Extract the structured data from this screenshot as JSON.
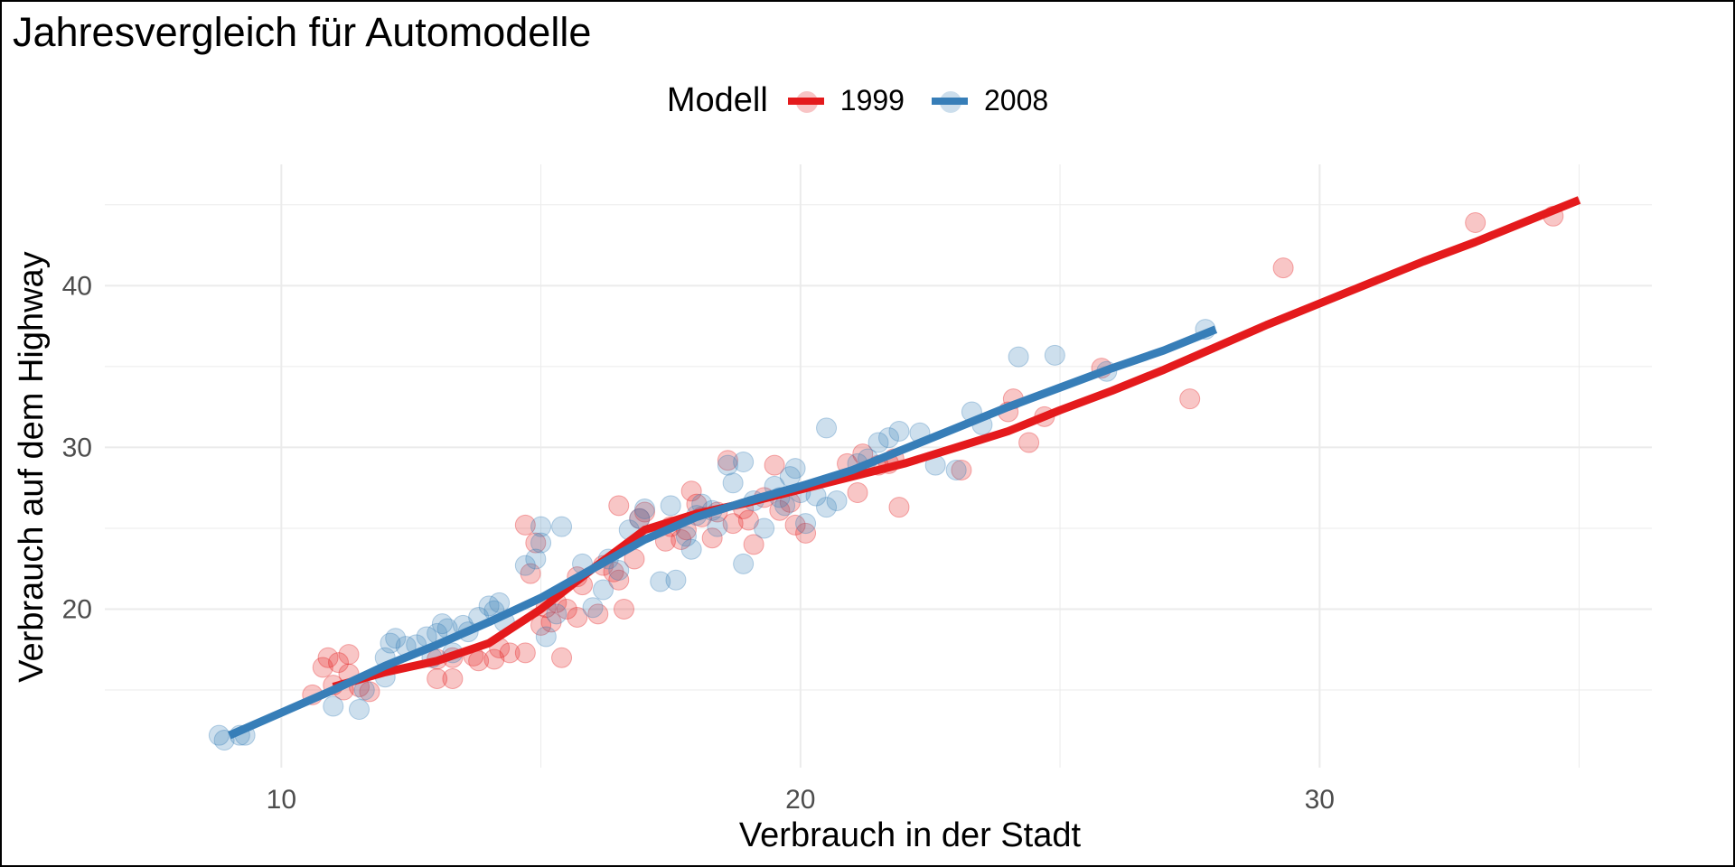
{
  "chart_data": {
    "type": "scatter",
    "title": "Jahresvergleich für Automodelle",
    "xlabel": "Verbrauch in der Stadt",
    "ylabel": "Verbrauch auf dem Highway",
    "xlim": [
      6.6,
      36.4
    ],
    "ylim": [
      10.2,
      47.5
    ],
    "x_ticks": [
      10,
      20,
      30
    ],
    "y_ticks": [
      20,
      30,
      40
    ],
    "grid": true,
    "legend": {
      "title": "Modell",
      "position": "top",
      "entries": [
        "1999",
        "2008"
      ]
    },
    "series": [
      {
        "name": "1999",
        "color": "#e41a1c",
        "points": [
          [
            10.6,
            14.7
          ],
          [
            10.8,
            16.4
          ],
          [
            10.9,
            17.0
          ],
          [
            11.0,
            15.3
          ],
          [
            11.1,
            16.7
          ],
          [
            11.2,
            15.0
          ],
          [
            11.3,
            17.2
          ],
          [
            11.3,
            16.0
          ],
          [
            11.5,
            15.2
          ],
          [
            11.7,
            14.9
          ],
          [
            13.0,
            15.7
          ],
          [
            13.3,
            15.7
          ],
          [
            13.0,
            16.9
          ],
          [
            13.3,
            17.0
          ],
          [
            13.7,
            17.1
          ],
          [
            13.8,
            16.8
          ],
          [
            14.1,
            16.9
          ],
          [
            14.2,
            17.6
          ],
          [
            14.4,
            17.3
          ],
          [
            14.7,
            17.3
          ],
          [
            14.8,
            22.2
          ],
          [
            14.7,
            25.2
          ],
          [
            14.9,
            24.1
          ],
          [
            15.0,
            19.0
          ],
          [
            15.1,
            20.1
          ],
          [
            15.2,
            19.2
          ],
          [
            15.3,
            20.4
          ],
          [
            15.4,
            17.0
          ],
          [
            15.5,
            20.0
          ],
          [
            15.7,
            19.5
          ],
          [
            15.7,
            22.0
          ],
          [
            15.8,
            21.5
          ],
          [
            16.1,
            19.7
          ],
          [
            16.2,
            22.7
          ],
          [
            16.4,
            22.3
          ],
          [
            16.5,
            26.4
          ],
          [
            16.5,
            21.8
          ],
          [
            16.6,
            20.0
          ],
          [
            16.8,
            23.1
          ],
          [
            16.9,
            25.6
          ],
          [
            17.0,
            26.0
          ],
          [
            17.4,
            24.2
          ],
          [
            17.5,
            25.1
          ],
          [
            17.7,
            24.3
          ],
          [
            17.8,
            24.9
          ],
          [
            17.9,
            27.3
          ],
          [
            18.0,
            26.5
          ],
          [
            18.1,
            25.7
          ],
          [
            18.3,
            24.4
          ],
          [
            18.4,
            26.0
          ],
          [
            18.6,
            29.2
          ],
          [
            18.7,
            25.3
          ],
          [
            18.9,
            26.2
          ],
          [
            19.0,
            25.5
          ],
          [
            19.1,
            24.0
          ],
          [
            19.3,
            26.9
          ],
          [
            19.5,
            28.9
          ],
          [
            19.6,
            26.1
          ],
          [
            19.8,
            26.6
          ],
          [
            19.9,
            25.2
          ],
          [
            20.1,
            24.7
          ],
          [
            20.9,
            29.0
          ],
          [
            21.1,
            27.2
          ],
          [
            21.2,
            29.6
          ],
          [
            21.5,
            28.9
          ],
          [
            21.7,
            29.0
          ],
          [
            21.8,
            29.3
          ],
          [
            21.9,
            26.3
          ],
          [
            23.1,
            28.6
          ],
          [
            24.0,
            32.2
          ],
          [
            24.1,
            33.0
          ],
          [
            24.4,
            30.3
          ],
          [
            24.7,
            31.9
          ],
          [
            25.8,
            34.9
          ],
          [
            27.5,
            33.0
          ],
          [
            29.3,
            41.1
          ],
          [
            33.0,
            43.9
          ],
          [
            34.5,
            44.3
          ]
        ],
        "trend": [
          [
            11.0,
            15.2
          ],
          [
            12.0,
            16.1
          ],
          [
            13.0,
            16.8
          ],
          [
            14.0,
            17.9
          ],
          [
            15.0,
            20.0
          ],
          [
            16.0,
            22.5
          ],
          [
            17.0,
            24.9
          ],
          [
            18.0,
            25.9
          ],
          [
            19.0,
            26.6
          ],
          [
            20.0,
            27.4
          ],
          [
            21.0,
            28.2
          ],
          [
            22.0,
            29.0
          ],
          [
            23.0,
            30.0
          ],
          [
            24.0,
            31.0
          ],
          [
            25.0,
            32.3
          ],
          [
            26.0,
            33.5
          ],
          [
            27.0,
            34.8
          ],
          [
            28.0,
            36.2
          ],
          [
            29.0,
            37.6
          ],
          [
            30.0,
            38.9
          ],
          [
            31.0,
            40.2
          ],
          [
            32.0,
            41.5
          ],
          [
            33.0,
            42.7
          ],
          [
            34.0,
            44.0
          ],
          [
            35.0,
            45.3
          ]
        ]
      },
      {
        "name": "2008",
        "color": "#377eb8",
        "points": [
          [
            8.8,
            12.2
          ],
          [
            8.9,
            11.9
          ],
          [
            9.2,
            12.2
          ],
          [
            9.3,
            12.2
          ],
          [
            11.0,
            14.0
          ],
          [
            11.5,
            13.8
          ],
          [
            11.6,
            15.0
          ],
          [
            12.0,
            15.8
          ],
          [
            12.0,
            17.0
          ],
          [
            12.1,
            17.9
          ],
          [
            12.2,
            18.2
          ],
          [
            12.4,
            17.7
          ],
          [
            12.6,
            17.8
          ],
          [
            12.8,
            18.3
          ],
          [
            12.9,
            17.0
          ],
          [
            13.0,
            18.5
          ],
          [
            13.1,
            19.1
          ],
          [
            13.2,
            18.8
          ],
          [
            13.3,
            17.3
          ],
          [
            13.5,
            19.0
          ],
          [
            13.6,
            18.6
          ],
          [
            13.8,
            19.5
          ],
          [
            14.0,
            20.2
          ],
          [
            14.1,
            19.9
          ],
          [
            14.2,
            20.4
          ],
          [
            14.3,
            19.2
          ],
          [
            14.7,
            22.7
          ],
          [
            14.9,
            23.1
          ],
          [
            15.0,
            24.1
          ],
          [
            15.0,
            25.1
          ],
          [
            15.1,
            18.3
          ],
          [
            15.3,
            19.7
          ],
          [
            15.4,
            25.1
          ],
          [
            15.8,
            22.8
          ],
          [
            16.0,
            20.1
          ],
          [
            16.2,
            21.2
          ],
          [
            16.3,
            23.1
          ],
          [
            16.5,
            22.4
          ],
          [
            16.7,
            24.9
          ],
          [
            16.9,
            25.6
          ],
          [
            17.0,
            26.2
          ],
          [
            17.3,
            21.7
          ],
          [
            17.5,
            26.4
          ],
          [
            17.6,
            21.8
          ],
          [
            17.8,
            24.5
          ],
          [
            17.9,
            23.7
          ],
          [
            18.0,
            25.8
          ],
          [
            18.1,
            26.5
          ],
          [
            18.3,
            26.1
          ],
          [
            18.4,
            25.1
          ],
          [
            18.6,
            28.9
          ],
          [
            18.7,
            27.8
          ],
          [
            18.9,
            22.8
          ],
          [
            18.9,
            29.1
          ],
          [
            19.1,
            26.7
          ],
          [
            19.3,
            25.0
          ],
          [
            19.5,
            27.6
          ],
          [
            19.6,
            26.9
          ],
          [
            19.7,
            26.4
          ],
          [
            19.8,
            28.2
          ],
          [
            19.9,
            28.7
          ],
          [
            20.0,
            27.2
          ],
          [
            20.1,
            25.3
          ],
          [
            20.3,
            27.0
          ],
          [
            20.5,
            26.3
          ],
          [
            20.5,
            31.2
          ],
          [
            20.7,
            26.7
          ],
          [
            21.1,
            29.0
          ],
          [
            21.3,
            29.3
          ],
          [
            21.5,
            30.3
          ],
          [
            21.7,
            30.6
          ],
          [
            21.9,
            31.0
          ],
          [
            22.3,
            30.9
          ],
          [
            22.6,
            28.9
          ],
          [
            23.0,
            28.6
          ],
          [
            23.3,
            32.2
          ],
          [
            23.5,
            31.4
          ],
          [
            24.2,
            35.6
          ],
          [
            24.9,
            35.7
          ],
          [
            25.9,
            34.7
          ],
          [
            27.8,
            37.3
          ]
        ],
        "trend": [
          [
            9.0,
            12.2
          ],
          [
            10.0,
            13.6
          ],
          [
            11.0,
            15.0
          ],
          [
            12.0,
            16.5
          ],
          [
            13.0,
            17.8
          ],
          [
            14.0,
            19.2
          ],
          [
            15.0,
            20.7
          ],
          [
            16.0,
            22.5
          ],
          [
            17.0,
            24.3
          ],
          [
            18.0,
            25.7
          ],
          [
            19.0,
            26.7
          ],
          [
            20.0,
            27.6
          ],
          [
            21.0,
            28.6
          ],
          [
            22.0,
            29.9
          ],
          [
            23.0,
            31.2
          ],
          [
            24.0,
            32.5
          ],
          [
            25.0,
            33.7
          ],
          [
            26.0,
            34.9
          ],
          [
            27.0,
            36.0
          ],
          [
            28.0,
            37.3
          ]
        ]
      }
    ]
  }
}
